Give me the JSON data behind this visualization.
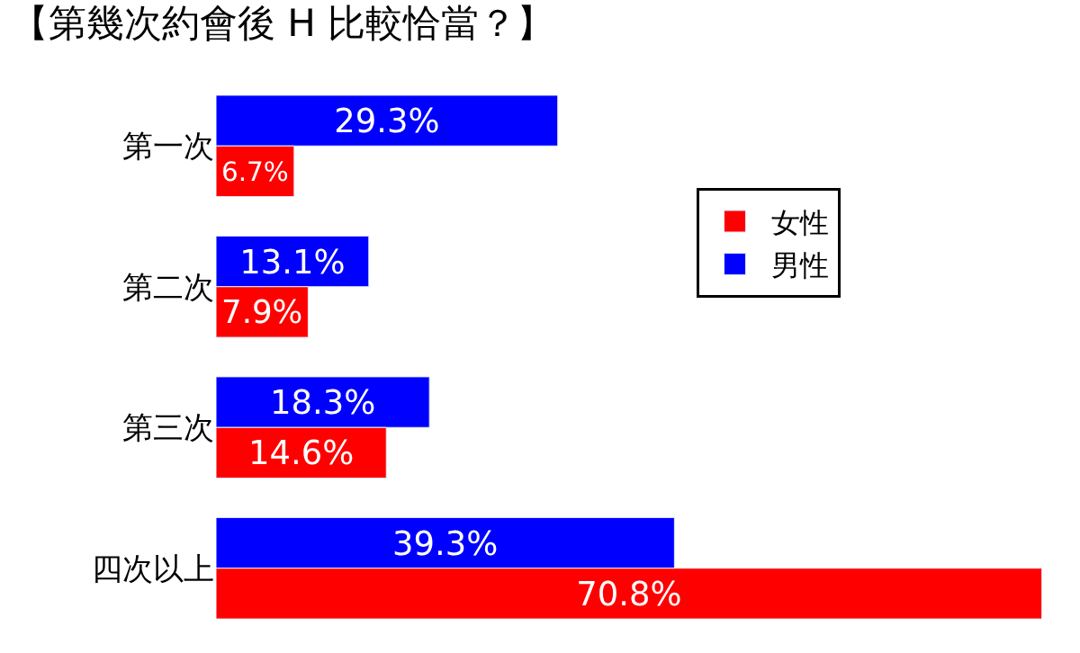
{
  "chart_data": {
    "type": "bar",
    "orientation": "horizontal",
    "title": "【第幾次約會後 H 比較恰當？】",
    "categories": [
      "第一次",
      "第二次",
      "第三次",
      "四次以上"
    ],
    "series": [
      {
        "name": "男性",
        "color": "#0000ff",
        "values": [
          29.3,
          13.1,
          18.3,
          39.3
        ],
        "value_labels": [
          "29.3%",
          "13.1%",
          "18.3%",
          "39.3%"
        ]
      },
      {
        "name": "女性",
        "color": "#ff0000",
        "values": [
          6.7,
          7.9,
          14.6,
          70.8
        ],
        "value_labels": [
          "6.7%",
          "7.9%",
          "14.6%",
          "70.8%"
        ]
      }
    ],
    "legend": "right"
  }
}
